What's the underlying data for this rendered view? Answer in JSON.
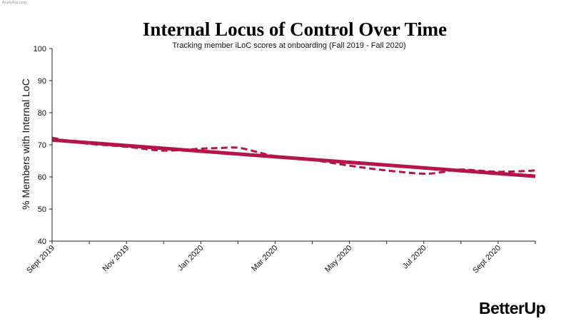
{
  "watermark": "AnalyAiq.com",
  "logo": "BetterUp",
  "chart_data": {
    "type": "line",
    "title": "Internal Locus of Control Over Time",
    "subtitle": "Tracking member iLoC scores at onboarding (Fall 2019 - Fall 2020)",
    "xlabel": "",
    "ylabel": "% Members with Internal LoC",
    "ylim": [
      40,
      100
    ],
    "yticks": [
      40,
      50,
      60,
      70,
      80,
      90,
      100
    ],
    "x_range": [
      0,
      13
    ],
    "xticks": [
      {
        "label": "Sept 2019",
        "x": 0
      },
      {
        "label": "Nov 2019",
        "x": 2
      },
      {
        "label": "Jan 2020",
        "x": 4
      },
      {
        "label": "Mar 2020",
        "x": 6
      },
      {
        "label": "May 2020",
        "x": 8
      },
      {
        "label": "Jul 2020",
        "x": 10
      },
      {
        "label": "Sept 2020",
        "x": 12
      }
    ],
    "grid": false,
    "series": [
      {
        "style": "dashed",
        "color": "#b5134c",
        "x": [
          0,
          0.5,
          1,
          2,
          3,
          4,
          4.5,
          5,
          5.5,
          6,
          7,
          8,
          9,
          10,
          10.5,
          11,
          12,
          13
        ],
        "y": [
          72.2,
          71.1,
          70.3,
          69.4,
          68.2,
          68.8,
          69.0,
          69.1,
          67.8,
          66.5,
          65.3,
          63.5,
          62.0,
          61.0,
          61.5,
          62.3,
          61.6,
          62.0
        ]
      },
      {
        "style": "solid",
        "color": "#b5134c",
        "x": [
          0,
          13
        ],
        "y": [
          71.5,
          60.2
        ]
      }
    ]
  }
}
